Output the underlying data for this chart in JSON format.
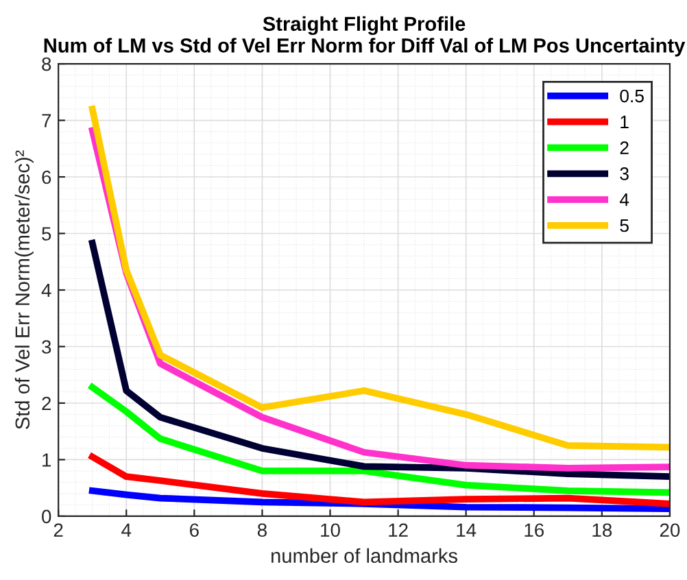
{
  "chart_data": {
    "type": "line",
    "title": "Straight Flight Profile\nNum of LM vs Std of Vel Err Norm for Diff Val of LM Pos Uncertainty",
    "xlabel": "number of landmarks",
    "ylabel": "Std of Vel Err Norm(meter/sec)²",
    "x": [
      3,
      4,
      5,
      8,
      11,
      14,
      17,
      20
    ],
    "series": [
      {
        "name": "0.5",
        "color": "#0000ff",
        "values": [
          0.45,
          0.38,
          0.32,
          0.25,
          0.22,
          0.16,
          0.15,
          0.13
        ]
      },
      {
        "name": "1",
        "color": "#ff0000",
        "values": [
          1.05,
          0.7,
          0.63,
          0.4,
          0.25,
          0.3,
          0.32,
          0.22
        ]
      },
      {
        "name": "2",
        "color": "#00ff00",
        "values": [
          2.28,
          1.85,
          1.37,
          0.8,
          0.8,
          0.55,
          0.45,
          0.42
        ]
      },
      {
        "name": "3",
        "color": "#000033",
        "values": [
          4.83,
          2.22,
          1.75,
          1.2,
          0.88,
          0.85,
          0.75,
          0.7
        ]
      },
      {
        "name": "4",
        "color": "#ff33cc",
        "values": [
          6.82,
          4.3,
          2.7,
          1.75,
          1.13,
          0.9,
          0.85,
          0.87
        ]
      },
      {
        "name": "5",
        "color": "#ffcc00",
        "values": [
          7.2,
          4.35,
          2.85,
          1.92,
          2.22,
          1.8,
          1.25,
          1.22
        ]
      }
    ],
    "xlim": [
      2,
      20
    ],
    "xticks": [
      2,
      4,
      6,
      8,
      10,
      12,
      14,
      16,
      18,
      20
    ],
    "ylim": [
      0,
      8
    ],
    "yticks": [
      0,
      1,
      2,
      3,
      4,
      5,
      6,
      7,
      8
    ],
    "grid": true,
    "legend": "top right",
    "marker": "none",
    "line_style": "solid"
  }
}
